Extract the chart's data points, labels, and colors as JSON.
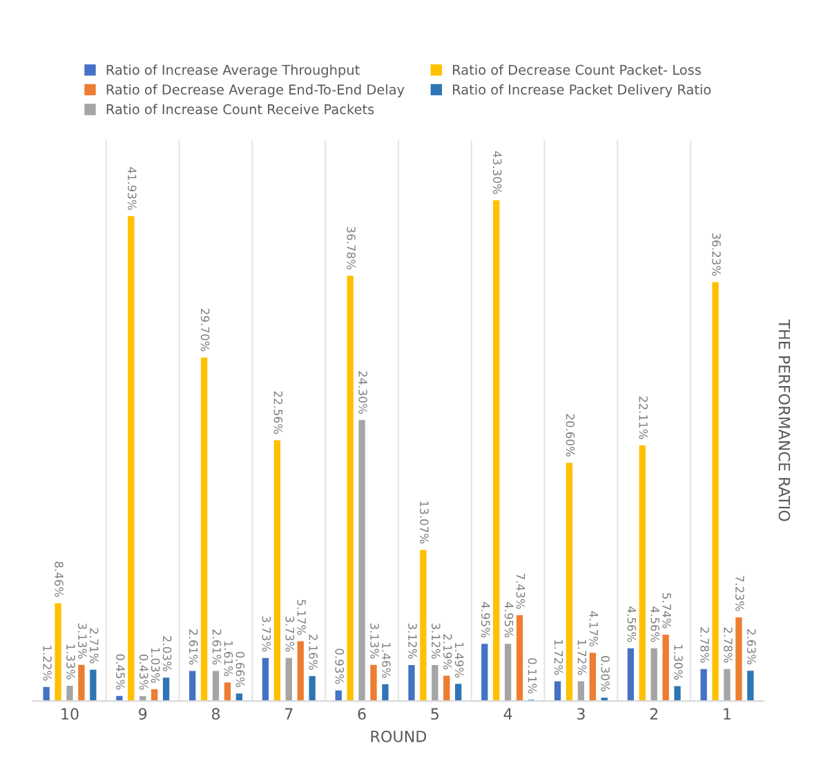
{
  "chart_data": {
    "type": "bar",
    "xlabel": "ROUND",
    "y2label": "THE PERFORMANCE RATIO",
    "legend": "top",
    "tick_labels": "x",
    "categories": [
      "10",
      "9",
      "8",
      "7",
      "6",
      "5",
      "4",
      "3",
      "2",
      "1"
    ],
    "series": [
      {
        "name": "Ratio of Increase Average Throughput",
        "color": "#4472c4",
        "values": [
          1.22,
          0.45,
          2.61,
          3.73,
          0.93,
          3.12,
          4.95,
          1.72,
          4.56,
          2.78
        ],
        "value_labels": [
          "1.22%",
          "0.45%",
          "2.61%",
          "3.73%",
          "0.93%",
          "3.12%",
          "4.95%",
          "1.72%",
          "4.56%",
          "2.78%"
        ]
      },
      {
        "name": "Ratio of Decrease Average End-To-End Delay",
        "color": "#ed7d31",
        "values": [
          3.13,
          1.03,
          1.61,
          5.17,
          3.13,
          2.19,
          7.43,
          4.17,
          5.74,
          7.23
        ],
        "value_labels": [
          "3.13%",
          "1.03%",
          "1.61%",
          "5.17%",
          "3.13%",
          "2.19%",
          "7.43%",
          "4.17%",
          "5.74%",
          "7.23%"
        ]
      },
      {
        "name": "Ratio of Increase Count Receive Packets",
        "color": "#a5a5a5",
        "values": [
          1.33,
          0.43,
          2.61,
          3.73,
          24.3,
          3.12,
          4.95,
          1.72,
          4.56,
          2.78
        ],
        "value_labels": [
          "1.33%",
          "0.43%",
          "2.61%",
          "3.73%",
          "24.30%",
          "3.12%",
          "4.95%",
          "1.72%",
          "4.56%",
          "2.78%"
        ]
      },
      {
        "name": "Ratio of Decrease Count Packet- Loss",
        "color": "#ffc000",
        "values": [
          8.46,
          41.93,
          29.7,
          22.56,
          36.78,
          13.07,
          43.3,
          20.6,
          22.11,
          36.23
        ],
        "value_labels": [
          "8.46%",
          "41.93%",
          "29.70%",
          "22.56%",
          "36.78%",
          "13.07%",
          "43.30%",
          "20.60%",
          "22.11%",
          "36.23%"
        ]
      },
      {
        "name": "Ratio of Increase Packet Delivery Ratio",
        "color": "#2e75b6",
        "values": [
          2.71,
          2.03,
          0.66,
          2.16,
          1.46,
          1.49,
          0.11,
          0.3,
          1.3,
          2.63
        ],
        "value_labels": [
          "2.71%",
          "2.03%",
          "0.66%",
          "2.16%",
          "1.46%",
          "1.49%",
          "0.11%",
          "0.30%",
          "1.30%",
          "2.63%"
        ]
      }
    ]
  }
}
